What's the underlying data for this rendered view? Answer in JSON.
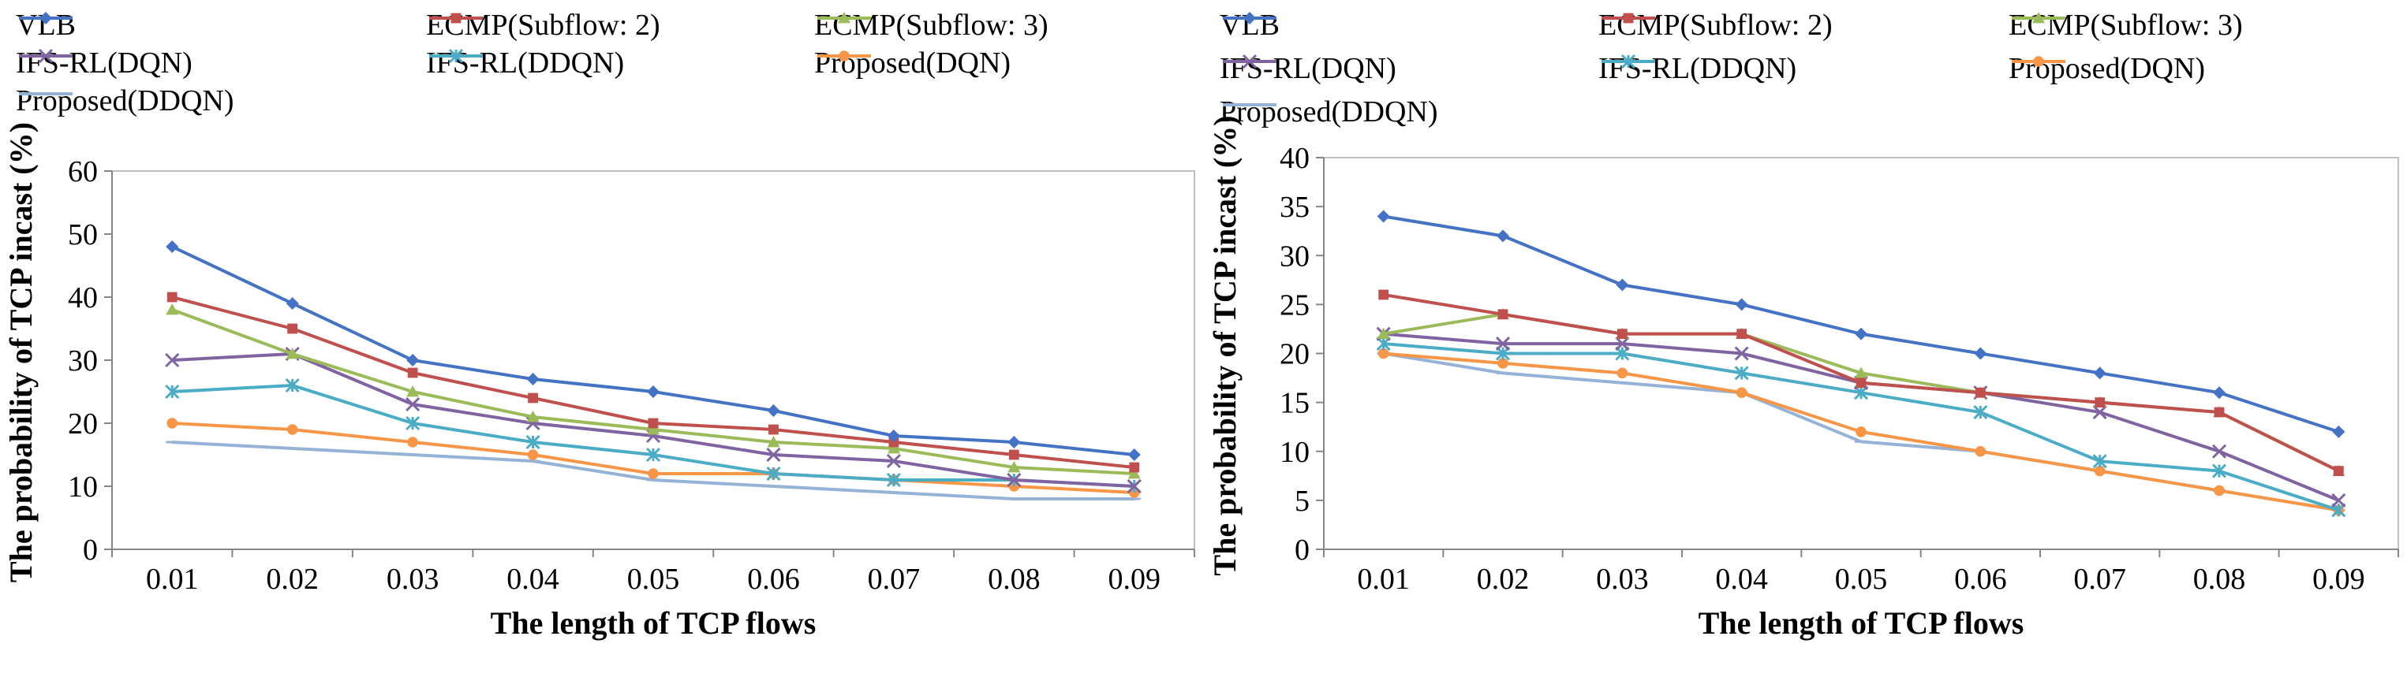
{
  "chart_data": [
    {
      "type": "line",
      "title": "",
      "xlabel": "The length of TCP flows",
      "ylabel": "The probability of TCP incast (%)",
      "categories": [
        "0.01",
        "0.02",
        "0.03",
        "0.04",
        "0.05",
        "0.06",
        "0.07",
        "0.08",
        "0.09"
      ],
      "ylim": [
        0,
        60
      ],
      "yticks": [
        0,
        10,
        20,
        30,
        40,
        50,
        60
      ],
      "grid": false,
      "legend_position": "top",
      "series": [
        {
          "name": "VLB",
          "color": "#4472C4",
          "marker": "diamond",
          "values": [
            48,
            39,
            30,
            27,
            25,
            22,
            18,
            17,
            15
          ]
        },
        {
          "name": "ECMP(Subflow: 2)",
          "color": "#C0504D",
          "marker": "square",
          "values": [
            40,
            35,
            28,
            24,
            20,
            19,
            17,
            15,
            13
          ]
        },
        {
          "name": "ECMP(Subflow: 3)",
          "color": "#9BBB59",
          "marker": "triangle",
          "values": [
            38,
            31,
            25,
            21,
            19,
            17,
            16,
            13,
            12
          ]
        },
        {
          "name": "IFS-RL(DQN)",
          "color": "#8064A2",
          "marker": "cross",
          "values": [
            30,
            31,
            23,
            20,
            18,
            15,
            14,
            11,
            10
          ]
        },
        {
          "name": "IFS-RL(DDQN)",
          "color": "#4BACC6",
          "marker": "star",
          "values": [
            25,
            26,
            20,
            17,
            15,
            12,
            11,
            11,
            10
          ]
        },
        {
          "name": "Proposed(DQN)",
          "color": "#F79646",
          "marker": "circle",
          "values": [
            20,
            19,
            17,
            15,
            12,
            12,
            11,
            10,
            9
          ]
        },
        {
          "name": "Proposed(DDQN)",
          "color": "#95B3D7",
          "marker": "plus",
          "values": [
            17,
            16,
            15,
            14,
            11,
            10,
            9,
            8,
            8
          ]
        }
      ]
    },
    {
      "type": "line",
      "title": "",
      "xlabel": "The length of TCP flows",
      "ylabel": "The probability of TCP incast (%)",
      "categories": [
        "0.01",
        "0.02",
        "0.03",
        "0.04",
        "0.05",
        "0.06",
        "0.07",
        "0.08",
        "0.09"
      ],
      "ylim": [
        0,
        40
      ],
      "yticks": [
        0,
        5,
        10,
        15,
        20,
        25,
        30,
        35,
        40
      ],
      "grid": false,
      "legend_position": "top",
      "series": [
        {
          "name": "VLB",
          "color": "#4472C4",
          "marker": "diamond",
          "values": [
            34,
            32,
            27,
            25,
            22,
            20,
            18,
            16,
            12
          ]
        },
        {
          "name": "ECMP(Subflow: 2)",
          "color": "#C0504D",
          "marker": "square",
          "values": [
            26,
            24,
            22,
            22,
            17,
            16,
            15,
            14,
            8
          ]
        },
        {
          "name": "ECMP(Subflow: 3)",
          "color": "#9BBB59",
          "marker": "triangle",
          "values": [
            22,
            24,
            22,
            22,
            18,
            16,
            15,
            14,
            8
          ]
        },
        {
          "name": "IFS-RL(DQN)",
          "color": "#8064A2",
          "marker": "cross",
          "values": [
            22,
            21,
            21,
            20,
            17,
            16,
            14,
            10,
            5
          ]
        },
        {
          "name": "IFS-RL(DDQN)",
          "color": "#4BACC6",
          "marker": "star",
          "values": [
            21,
            20,
            20,
            18,
            16,
            14,
            9,
            8,
            4
          ]
        },
        {
          "name": "Proposed(DQN)",
          "color": "#F79646",
          "marker": "circle",
          "values": [
            20,
            19,
            18,
            16,
            12,
            10,
            8,
            6,
            4
          ]
        },
        {
          "name": "Proposed(DDQN)",
          "color": "#95B3D7",
          "marker": "plus",
          "values": [
            20,
            18,
            17,
            16,
            11,
            10,
            8,
            6,
            4
          ]
        }
      ]
    }
  ]
}
